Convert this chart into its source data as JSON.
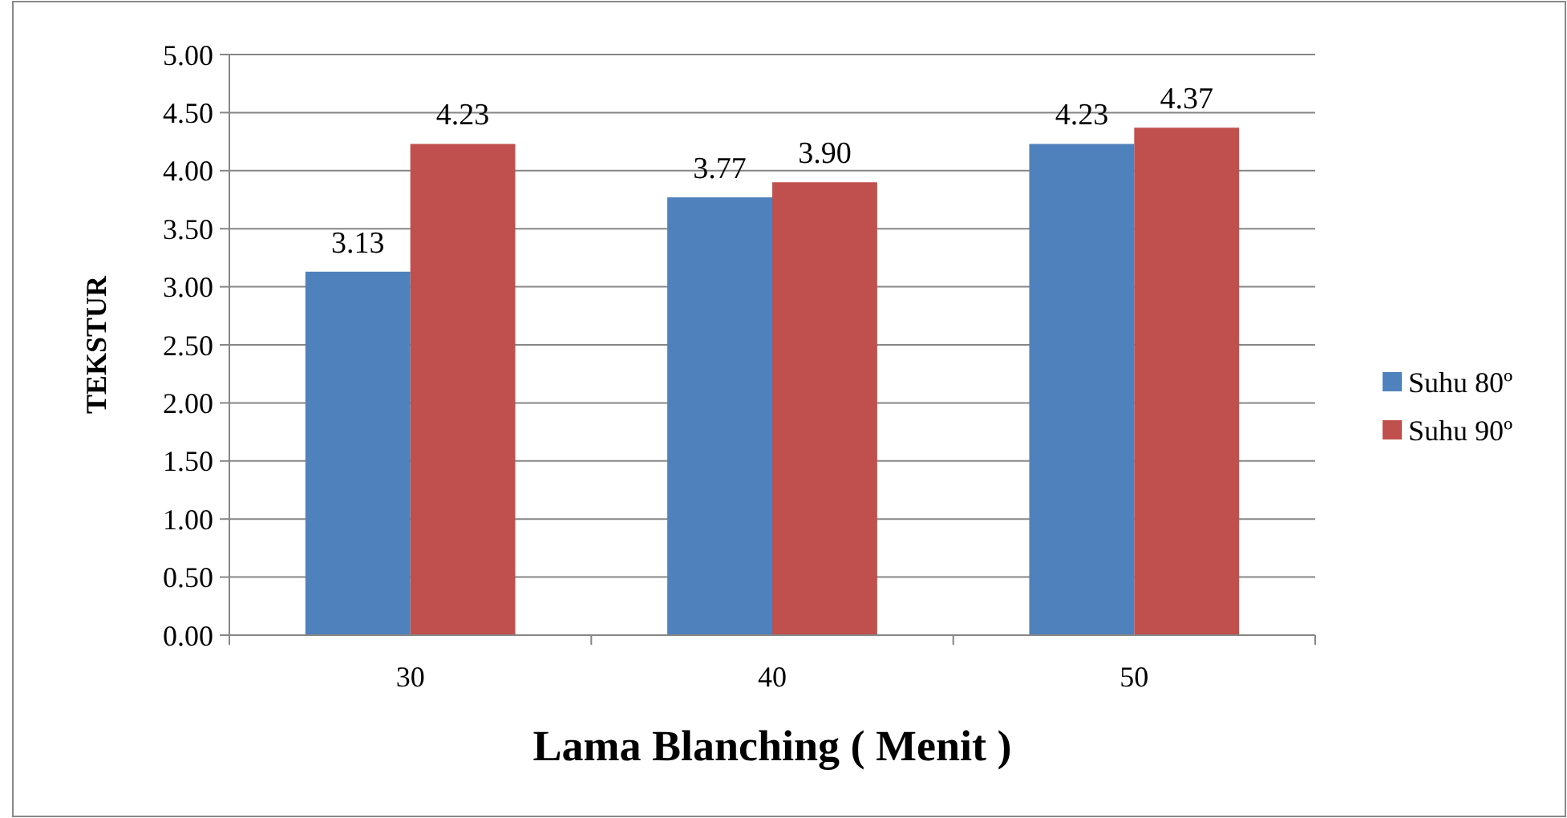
{
  "chart_data": {
    "type": "bar",
    "xlabel": "Lama Blanching ( Menit )",
    "ylabel": "TEKSTUR",
    "categories": [
      "30",
      "40",
      "50"
    ],
    "series": [
      {
        "name": "Suhu 80º",
        "color": "#4f81bd",
        "values": [
          3.13,
          3.77,
          4.23
        ],
        "value_labels": [
          "3.13",
          "3.77",
          "4.23"
        ]
      },
      {
        "name": "Suhu 90º",
        "color": "#c0504d",
        "values": [
          4.23,
          3.9,
          4.37
        ],
        "value_labels": [
          "4.23",
          "3.90",
          "4.37"
        ]
      }
    ],
    "ylim": [
      0,
      5
    ],
    "yticks": [
      {
        "value": 0,
        "label": "0.00"
      },
      {
        "value": 0.5,
        "label": "0.50"
      },
      {
        "value": 1,
        "label": "1.00"
      },
      {
        "value": 1.5,
        "label": "1.50"
      },
      {
        "value": 2,
        "label": "2.00"
      },
      {
        "value": 2.5,
        "label": "2.50"
      },
      {
        "value": 3,
        "label": "3.00"
      },
      {
        "value": 3.5,
        "label": "3.50"
      },
      {
        "value": 4,
        "label": "4.00"
      },
      {
        "value": 4.5,
        "label": "4.50"
      },
      {
        "value": 5,
        "label": "5.00"
      }
    ],
    "grid": "y",
    "legend": "right"
  }
}
